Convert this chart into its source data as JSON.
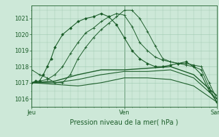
{
  "title": "",
  "xlabel": "Pression niveau de la mer( hPa )",
  "ylabel": "",
  "bg_color": "#cde8d8",
  "grid_color": "#9dc8b0",
  "line_color_dark": "#1a5c28",
  "ylim": [
    1015.5,
    1021.8
  ],
  "xtick_labels": [
    "Jeu",
    "Ven",
    "Sam"
  ],
  "xtick_positions": [
    0,
    24,
    48
  ],
  "ytick_positions": [
    1016,
    1017,
    1018,
    1019,
    1020,
    1021
  ],
  "series": [
    {
      "x": [
        0,
        1,
        2,
        3,
        4,
        5,
        6,
        8,
        10,
        12,
        14,
        16,
        18,
        20,
        22,
        24,
        26,
        28,
        30,
        32,
        34,
        36,
        38,
        40,
        42,
        44,
        46,
        48
      ],
      "y": [
        1017.0,
        1017.1,
        1017.1,
        1017.5,
        1018.0,
        1018.5,
        1019.2,
        1020.0,
        1020.4,
        1020.8,
        1021.0,
        1021.1,
        1021.3,
        1021.1,
        1020.6,
        1019.8,
        1019.0,
        1018.5,
        1018.2,
        1018.0,
        1018.0,
        1018.1,
        1018.2,
        1018.3,
        1018.0,
        1017.5,
        1016.5,
        1015.8
      ],
      "style": "-",
      "marker": "D",
      "markersize": 1.8,
      "linewidth": 0.8,
      "zorder": 5
    },
    {
      "x": [
        0,
        2,
        4,
        6,
        8,
        10,
        12,
        14,
        16,
        18,
        20,
        22,
        24,
        26,
        28,
        30,
        32,
        34,
        36,
        38,
        40,
        42,
        44,
        46,
        48
      ],
      "y": [
        1017.8,
        1017.5,
        1017.3,
        1017.0,
        1017.0,
        1017.5,
        1018.5,
        1019.2,
        1019.8,
        1020.3,
        1020.7,
        1021.1,
        1021.5,
        1021.5,
        1021.0,
        1020.2,
        1019.3,
        1018.5,
        1018.3,
        1018.2,
        1018.2,
        1018.1,
        1018.0,
        1017.0,
        1016.0
      ],
      "style": "-",
      "marker": "+",
      "markersize": 3,
      "linewidth": 0.7,
      "zorder": 4
    },
    {
      "x": [
        0,
        2,
        4,
        6,
        8,
        10,
        12,
        14,
        16,
        18,
        20,
        22,
        24,
        26,
        28,
        30,
        32,
        34,
        36,
        38,
        40,
        42,
        44,
        46,
        48
      ],
      "y": [
        1017.0,
        1017.1,
        1017.2,
        1017.5,
        1018.0,
        1018.8,
        1019.5,
        1020.1,
        1020.4,
        1020.8,
        1021.1,
        1021.3,
        1021.2,
        1020.5,
        1019.5,
        1019.0,
        1018.6,
        1018.4,
        1018.3,
        1018.2,
        1018.1,
        1018.0,
        1017.8,
        1016.7,
        1015.8
      ],
      "style": "-",
      "marker": "+",
      "markersize": 3,
      "linewidth": 0.7,
      "zorder": 4
    },
    {
      "x": [
        0,
        6,
        12,
        18,
        24,
        30,
        36,
        42,
        48
      ],
      "y": [
        1017.0,
        1017.1,
        1017.5,
        1017.8,
        1017.8,
        1017.9,
        1018.0,
        1017.5,
        1016.2
      ],
      "style": "-",
      "marker": null,
      "markersize": 0,
      "linewidth": 1.0,
      "zorder": 3
    },
    {
      "x": [
        0,
        6,
        12,
        18,
        24,
        30,
        36,
        42,
        48
      ],
      "y": [
        1017.0,
        1017.0,
        1017.2,
        1017.5,
        1017.7,
        1017.7,
        1017.8,
        1017.3,
        1016.0
      ],
      "style": "-",
      "marker": null,
      "markersize": 0,
      "linewidth": 0.8,
      "zorder": 3
    },
    {
      "x": [
        0,
        6,
        12,
        18,
        24,
        30,
        36,
        42,
        48
      ],
      "y": [
        1017.0,
        1016.9,
        1016.8,
        1017.0,
        1017.3,
        1017.3,
        1017.2,
        1016.8,
        1015.8
      ],
      "style": "-",
      "marker": null,
      "markersize": 0,
      "linewidth": 0.8,
      "zorder": 3
    }
  ]
}
